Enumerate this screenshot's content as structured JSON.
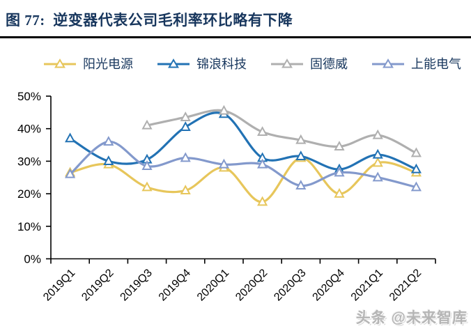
{
  "figure": {
    "title": "图 77:  逆变器代表公司毛利率环比略有下降",
    "watermark": "头条 @未来智库"
  },
  "colors": {
    "title_navy": "#17365D",
    "axis_black": "#000000",
    "divider_black": "#000000",
    "watermark_gray": "#B5B5B5"
  },
  "chart_data": {
    "type": "line",
    "title": "逆变器代表公司毛利率环比略有下降",
    "categories": [
      "2019Q1",
      "2019Q2",
      "2019Q3",
      "2019Q4",
      "2020Q1",
      "2020Q2",
      "2020Q3",
      "2020Q4",
      "2021Q1",
      "2021Q2"
    ],
    "series": [
      {
        "name": "阳光电源",
        "color": "#E7C65B",
        "marker": "hollow-triangle",
        "values": [
          26.5,
          29,
          22,
          21,
          28,
          17.5,
          31,
          20,
          29.5,
          26.5
        ]
      },
      {
        "name": "锦浪科技",
        "color": "#2272B4",
        "marker": "hollow-triangle",
        "values": [
          37,
          30,
          30.5,
          40.5,
          44.5,
          31,
          31.5,
          27.5,
          32,
          27.5
        ]
      },
      {
        "name": "固德威",
        "color": "#AFAFAF",
        "marker": "hollow-triangle",
        "values": [
          null,
          null,
          41,
          43.5,
          45.5,
          39,
          36.5,
          34.5,
          38,
          32.5
        ]
      },
      {
        "name": "上能电气",
        "color": "#8399CC",
        "marker": "hollow-triangle",
        "values": [
          26,
          36,
          28.5,
          31,
          29,
          29,
          22.5,
          26.5,
          25,
          22
        ]
      }
    ],
    "xlabel": "",
    "ylabel": "",
    "ytick_labels": [
      "0%",
      "10%",
      "20%",
      "30%",
      "40%",
      "50%"
    ],
    "ylim": [
      0,
      50
    ],
    "legend_position": "top",
    "grid": false,
    "smooth_lines": true
  }
}
